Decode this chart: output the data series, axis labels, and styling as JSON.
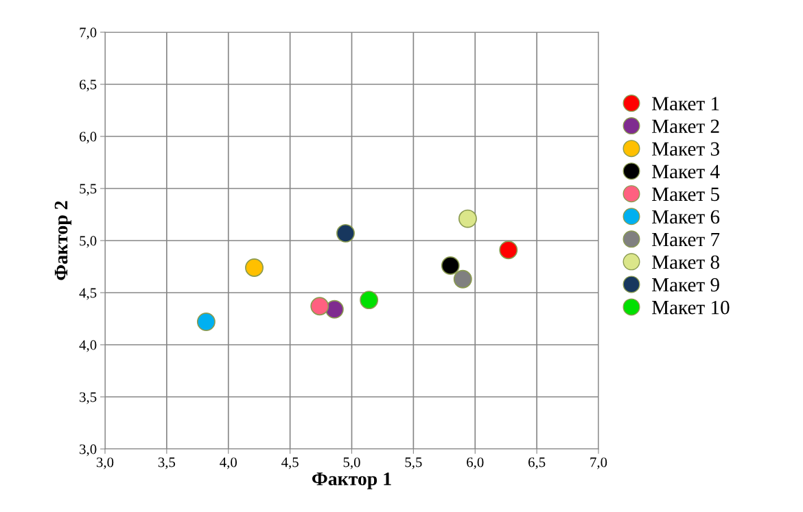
{
  "chart_data": {
    "type": "scatter",
    "xlabel": "Фактор 1",
    "ylabel": "Фактор 2",
    "xlim": [
      3.0,
      7.0
    ],
    "ylim": [
      3.0,
      7.0
    ],
    "xticks": [
      {
        "value": 3.0,
        "label": "3,0"
      },
      {
        "value": 3.5,
        "label": "3,5"
      },
      {
        "value": 4.0,
        "label": "4,0"
      },
      {
        "value": 4.5,
        "label": "4,5"
      },
      {
        "value": 5.0,
        "label": "5,0"
      },
      {
        "value": 5.5,
        "label": "5,5"
      },
      {
        "value": 6.0,
        "label": "6,0"
      },
      {
        "value": 6.5,
        "label": "6,5"
      },
      {
        "value": 7.0,
        "label": "7,0"
      }
    ],
    "yticks": [
      {
        "value": 3.0,
        "label": "3,0"
      },
      {
        "value": 3.5,
        "label": "3,5"
      },
      {
        "value": 4.0,
        "label": "4,0"
      },
      {
        "value": 4.5,
        "label": "4,5"
      },
      {
        "value": 5.0,
        "label": "5,0"
      },
      {
        "value": 5.5,
        "label": "5,5"
      },
      {
        "value": 6.0,
        "label": "6,0"
      },
      {
        "value": 6.5,
        "label": "6,5"
      },
      {
        "value": 7.0,
        "label": "7,0"
      }
    ],
    "grid": true,
    "legend": "right",
    "marker": "circle",
    "series": [
      {
        "name": "Макет 1",
        "color": "#ff0000",
        "x": [
          6.27
        ],
        "values": [
          4.91
        ]
      },
      {
        "name": "Макет 2",
        "color": "#7f2c8f",
        "x": [
          4.86
        ],
        "values": [
          4.34
        ]
      },
      {
        "name": "Макет 3",
        "color": "#ffc000",
        "x": [
          4.21
        ],
        "values": [
          4.74
        ]
      },
      {
        "name": "Макет 4",
        "color": "#000000",
        "x": [
          5.8
        ],
        "values": [
          4.76
        ]
      },
      {
        "name": "Макет 5",
        "color": "#ff6080",
        "x": [
          4.74
        ],
        "values": [
          4.37
        ]
      },
      {
        "name": "Макет 6",
        "color": "#00b0f0",
        "x": [
          3.82
        ],
        "values": [
          4.22
        ]
      },
      {
        "name": "Макет 7",
        "color": "#808080",
        "x": [
          5.9
        ],
        "values": [
          4.63
        ]
      },
      {
        "name": "Макет 8",
        "color": "#dbe68a",
        "x": [
          5.94
        ],
        "values": [
          5.21
        ]
      },
      {
        "name": "Макет 9",
        "color": "#17375e",
        "x": [
          4.95
        ],
        "values": [
          5.07
        ]
      },
      {
        "name": "Макет 10",
        "color": "#00e000",
        "x": [
          5.14
        ],
        "values": [
          4.43
        ]
      }
    ]
  }
}
